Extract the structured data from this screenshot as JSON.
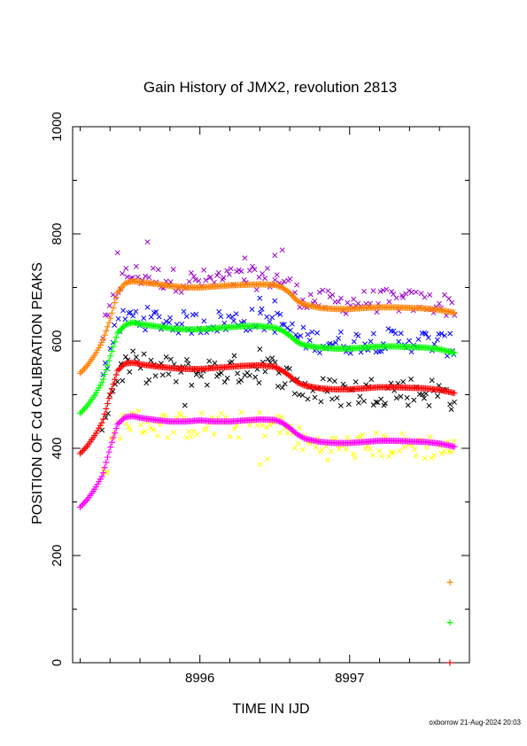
{
  "chart_data": {
    "type": "scatter",
    "title": "Gain History of JMX2, revolution 2813",
    "xlabel": "TIME IN IJD",
    "ylabel": "POSITION OF Cd CALIBRATION PEAKS",
    "xlim": [
      8995.15,
      8997.8
    ],
    "ylim": [
      0,
      1000
    ],
    "x_ticks": [
      8996,
      8997
    ],
    "y_ticks": [
      0,
      200,
      400,
      600,
      800,
      1000
    ],
    "grid": false,
    "fit_series": [
      {
        "color": "#ff8000",
        "marker": "+",
        "x": [
          8995.2,
          8995.25,
          8995.3,
          8995.35,
          8995.4,
          8995.45,
          8995.5,
          8995.55,
          8995.6,
          8995.7,
          8995.8,
          8995.9,
          8996.0,
          8996.1,
          8996.2,
          8996.3,
          8996.4,
          8996.5,
          8996.55,
          8996.6,
          8996.65,
          8996.7,
          8996.8,
          8996.9,
          8997.0,
          8997.1,
          8997.2,
          8997.3,
          8997.4,
          8997.5,
          8997.6,
          8997.7
        ],
        "y": [
          540,
          555,
          575,
          600,
          640,
          690,
          708,
          712,
          710,
          707,
          703,
          700,
          700,
          702,
          704,
          705,
          706,
          705,
          700,
          690,
          675,
          668,
          662,
          660,
          660,
          662,
          663,
          663,
          662,
          661,
          658,
          653
        ]
      },
      {
        "color": "#00ff00",
        "marker": "+",
        "x": [
          8995.2,
          8995.25,
          8995.3,
          8995.35,
          8995.4,
          8995.45,
          8995.5,
          8995.55,
          8995.6,
          8995.7,
          8995.8,
          8995.9,
          8996.0,
          8996.1,
          8996.2,
          8996.3,
          8996.4,
          8996.5,
          8996.55,
          8996.6,
          8996.65,
          8996.7,
          8996.8,
          8996.9,
          8997.0,
          8997.1,
          8997.2,
          8997.3,
          8997.4,
          8997.5,
          8997.6,
          8997.7
        ],
        "y": [
          465,
          480,
          500,
          525,
          570,
          615,
          630,
          635,
          632,
          628,
          624,
          622,
          622,
          624,
          626,
          628,
          628,
          625,
          620,
          610,
          598,
          592,
          588,
          586,
          586,
          588,
          590,
          590,
          589,
          588,
          585,
          578
        ]
      },
      {
        "color": "#ff0000",
        "marker": "+",
        "x": [
          8995.2,
          8995.25,
          8995.3,
          8995.35,
          8995.4,
          8995.45,
          8995.5,
          8995.55,
          8995.6,
          8995.7,
          8995.8,
          8995.9,
          8996.0,
          8996.1,
          8996.2,
          8996.3,
          8996.4,
          8996.5,
          8996.55,
          8996.6,
          8996.65,
          8996.7,
          8996.8,
          8996.9,
          8997.0,
          8997.1,
          8997.2,
          8997.3,
          8997.4,
          8997.5,
          8997.6,
          8997.7
        ],
        "y": [
          390,
          405,
          425,
          450,
          500,
          545,
          558,
          560,
          557,
          553,
          550,
          548,
          548,
          550,
          552,
          554,
          555,
          552,
          545,
          535,
          523,
          517,
          512,
          510,
          510,
          512,
          514,
          514,
          513,
          512,
          509,
          503
        ]
      },
      {
        "color": "#ff00ff",
        "marker": "+",
        "x": [
          8995.2,
          8995.25,
          8995.3,
          8995.35,
          8995.4,
          8995.45,
          8995.5,
          8995.55,
          8995.6,
          8995.7,
          8995.8,
          8995.9,
          8996.0,
          8996.1,
          8996.2,
          8996.3,
          8996.4,
          8996.5,
          8996.55,
          8996.6,
          8996.65,
          8996.7,
          8996.8,
          8996.9,
          8997.0,
          8997.1,
          8997.2,
          8997.3,
          8997.4,
          8997.5,
          8997.6,
          8997.7
        ],
        "y": [
          290,
          305,
          325,
          350,
          400,
          445,
          458,
          460,
          457,
          453,
          450,
          450,
          452,
          450,
          450,
          452,
          454,
          453,
          448,
          438,
          426,
          418,
          412,
          410,
          410,
          412,
          414,
          414,
          413,
          412,
          409,
          403
        ]
      }
    ],
    "scatter_series": [
      {
        "color": "#9900cc",
        "marker": "x",
        "center_offset": 12,
        "spread": 22,
        "x_start": 8995.35,
        "x_end": 8997.7,
        "extra_points": [
          [
            8995.65,
            785
          ],
          [
            8996.55,
            770
          ],
          [
            8996.5,
            760
          ],
          [
            8996.3,
            755
          ],
          [
            8995.45,
            765
          ]
        ]
      },
      {
        "color": "#0000ff",
        "marker": "x",
        "center_offset": 12,
        "spread": 22,
        "x_start": 8995.35,
        "x_end": 8997.7,
        "extra_points": [
          [
            8996.5,
            675
          ],
          [
            8996.4,
            680
          ]
        ]
      },
      {
        "color": "#000000",
        "marker": "x",
        "center_offset": -6,
        "spread": 28,
        "x_start": 8995.35,
        "x_end": 8997.7,
        "extra_points": [
          [
            8996.4,
            585
          ],
          [
            8995.9,
            480
          ]
        ]
      },
      {
        "color": "#ffff00",
        "marker": "x",
        "center_offset": -8,
        "spread": 25,
        "x_start": 8995.35,
        "x_end": 8997.7,
        "extra_points": [
          [
            8996.4,
            370
          ],
          [
            8996.45,
            380
          ]
        ]
      }
    ],
    "reference_marks": [
      {
        "x": 8997.67,
        "y": 150,
        "color": "#ff8000",
        "marker": "+"
      },
      {
        "x": 8997.67,
        "y": 75,
        "color": "#00ff00",
        "marker": "+"
      },
      {
        "x": 8997.67,
        "y": 0,
        "color": "#ff0000",
        "marker": "+"
      }
    ]
  },
  "footer": "oxborrow 21-Aug-2024 20:03"
}
